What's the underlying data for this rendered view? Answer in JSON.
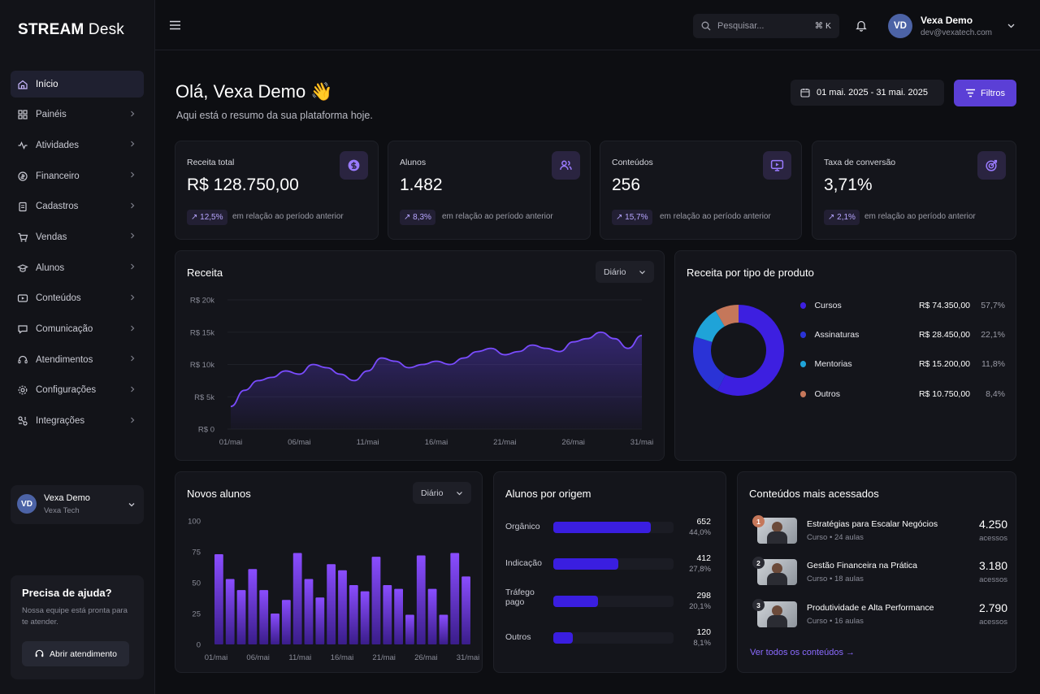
{
  "sidebar": {
    "logo_bold": "STREAM",
    "logo_rest": " Desk",
    "items": [
      {
        "label": "Início",
        "icon": "home-icon",
        "active": true
      },
      {
        "label": "Painéis",
        "icon": "grid-icon"
      },
      {
        "label": "Atividades",
        "icon": "activity-icon"
      },
      {
        "label": "Financeiro",
        "icon": "finance-icon"
      },
      {
        "label": "Cadastros",
        "icon": "clipboard-icon"
      },
      {
        "label": "Vendas",
        "icon": "cart-icon"
      },
      {
        "label": "Alunos",
        "icon": "students-icon"
      },
      {
        "label": "Conteúdos",
        "icon": "content-icon"
      },
      {
        "label": "Comunicação",
        "icon": "message-icon"
      },
      {
        "label": "Atendimentos",
        "icon": "support-icon"
      },
      {
        "label": "Configurações",
        "icon": "gear-icon"
      },
      {
        "label": "Integrações",
        "icon": "integration-icon"
      }
    ],
    "user": {
      "initials": "VD",
      "name": "Vexa Demo",
      "company": "Vexa Tech"
    },
    "help": {
      "title": "Precisa de ajuda?",
      "text": "Nossa equipe está pronta para te atender.",
      "button": "Abrir atendimento"
    }
  },
  "header": {
    "search_placeholder": "Pesquisar...",
    "search_shortcut": "⌘ K",
    "user_initials": "VD",
    "user_name": "Vexa Demo",
    "user_email": "dev@vexatech.com"
  },
  "page": {
    "greeting": "Olá, Vexa Demo 👋",
    "subtitle": "Aqui está o resumo da sua plataforma hoje.",
    "date_range": "01 mai. 2025 - 31 mai. 2025",
    "filters_label": "Filtros"
  },
  "kpis": [
    {
      "title": "Receita total",
      "value": "R$ 128.750,00",
      "change": "↗ 12,5%",
      "foot": "em relação ao período anterior",
      "icon": "dollar-icon"
    },
    {
      "title": "Alunos",
      "value": "1.482",
      "change": "↗ 8,3%",
      "foot": "em relação ao período anterior",
      "icon": "users-icon"
    },
    {
      "title": "Conteúdos",
      "value": "256",
      "change": "↗ 15,7%",
      "foot": "em relação ao período anterior",
      "icon": "monitor-icon"
    },
    {
      "title": "Taxa de conversão",
      "value": "3,71%",
      "change": "↗ 2,1%",
      "foot": "em relação ao período anterior",
      "icon": "target-icon"
    }
  ],
  "revenue": {
    "title": "Receita",
    "period": "Diário"
  },
  "product": {
    "title": "Receita por tipo de produto",
    "items": [
      {
        "name": "Cursos",
        "value": "R$ 74.350,00",
        "pct": "57,7%",
        "color": "#3d1fe0"
      },
      {
        "name": "Assinaturas",
        "value": "R$ 28.450,00",
        "pct": "22,1%",
        "color": "#2a33d6"
      },
      {
        "name": "Mentorias",
        "value": "R$ 15.200,00",
        "pct": "11,8%",
        "color": "#1fa3d8"
      },
      {
        "name": "Outros",
        "value": "R$ 10.750,00",
        "pct": "8,4%",
        "color": "#c5775a"
      }
    ]
  },
  "new_students": {
    "title": "Novos alunos",
    "period": "Diário"
  },
  "origin": {
    "title": "Alunos por origem",
    "items": [
      {
        "label": "Orgânico",
        "count": "652",
        "pct": "44,0%",
        "frac": 0.81
      },
      {
        "label": "Indicação",
        "count": "412",
        "pct": "27,8%",
        "frac": 0.54
      },
      {
        "label": "Tráfego pago",
        "count": "298",
        "pct": "20,1%",
        "frac": 0.37
      },
      {
        "label": "Outros",
        "count": "120",
        "pct": "8,1%",
        "frac": 0.16
      }
    ]
  },
  "top_content": {
    "title": "Conteúdos mais acessados",
    "items": [
      {
        "rank": "1",
        "title": "Estratégias para Escalar Negócios",
        "sub": "Curso • 24 aulas",
        "count": "4.250",
        "unit": "acessos"
      },
      {
        "rank": "2",
        "title": "Gestão Financeira na Prática",
        "sub": "Curso • 18 aulas",
        "count": "3.180",
        "unit": "acessos"
      },
      {
        "rank": "3",
        "title": "Produtividade e Alta Performance",
        "sub": "Curso • 16 aulas",
        "count": "2.790",
        "unit": "acessos"
      }
    ],
    "link": "Ver todos os conteúdos →"
  },
  "chart_data": [
    {
      "type": "area",
      "title": "Receita",
      "y_ticks": [
        "R$ 0",
        "R$ 5k",
        "R$ 10k",
        "R$ 15k",
        "R$ 20k"
      ],
      "x_ticks": [
        "01/mai",
        "06/mai",
        "11/mai",
        "16/mai",
        "21/mai",
        "26/mai",
        "31/mai"
      ],
      "ylim": [
        0,
        20000
      ],
      "x": [
        1,
        2,
        3,
        4,
        5,
        6,
        7,
        8,
        9,
        10,
        11,
        12,
        13,
        14,
        15,
        16,
        17,
        18,
        19,
        20,
        21,
        22,
        23,
        24,
        25,
        26,
        27,
        28,
        29,
        30,
        31
      ],
      "values": [
        3500,
        6000,
        7500,
        8000,
        9000,
        8500,
        10000,
        9500,
        8500,
        7500,
        9000,
        11000,
        10500,
        9500,
        10000,
        10500,
        10000,
        11000,
        12000,
        12500,
        11500,
        12000,
        13000,
        12500,
        12000,
        13500,
        14000,
        15000,
        14000,
        12500,
        14500
      ],
      "color": "#7a4cff"
    },
    {
      "type": "bar",
      "title": "Novos alunos",
      "y_ticks": [
        "0",
        "25",
        "50",
        "75",
        "100"
      ],
      "x_ticks": [
        "01/mai",
        "06/mai",
        "11/mai",
        "16/mai",
        "21/mai",
        "26/mai",
        "31/mai"
      ],
      "ylim": [
        0,
        100
      ],
      "values": [
        73,
        53,
        44,
        61,
        44,
        25,
        36,
        74,
        53,
        38,
        65,
        60,
        48,
        43,
        71,
        48,
        45,
        24,
        72,
        45,
        24,
        74,
        55
      ],
      "color": "#8a4dff"
    },
    {
      "type": "pie",
      "title": "Receita por tipo de produto",
      "categories": [
        "Cursos",
        "Assinaturas",
        "Mentorias",
        "Outros"
      ],
      "values": [
        57.7,
        22.1,
        11.8,
        8.4
      ],
      "colors": [
        "#3d1fe0",
        "#2a33d6",
        "#1fa3d8",
        "#c5775a"
      ]
    },
    {
      "type": "bar",
      "title": "Alunos por origem",
      "categories": [
        "Orgânico",
        "Indicação",
        "Tráfego pago",
        "Outros"
      ],
      "values": [
        652,
        412,
        298,
        120
      ]
    }
  ]
}
